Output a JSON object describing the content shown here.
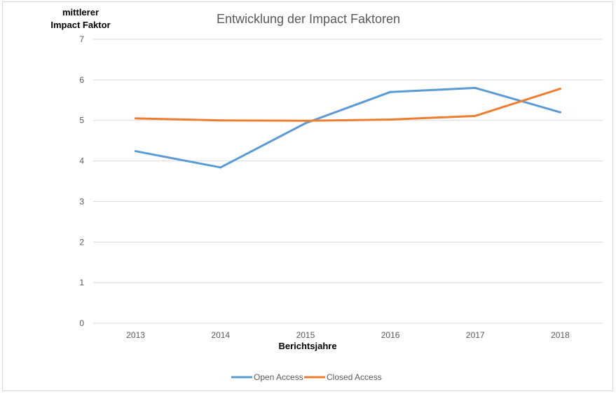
{
  "chart_data": {
    "type": "line",
    "title": "Entwicklung der Impact Faktoren",
    "ylabel_line1": "mittlerer",
    "ylabel_line2": "Impact Faktor",
    "xlabel": "Berichtsjahre",
    "categories": [
      "2013",
      "2014",
      "2015",
      "2016",
      "2017",
      "2018"
    ],
    "yticks": [
      "0",
      "1",
      "2",
      "3",
      "4",
      "5",
      "6",
      "7"
    ],
    "ylim": [
      0,
      7
    ],
    "grid": true,
    "legend_position": "bottom",
    "series": [
      {
        "name": "Open Access",
        "color": "#5b9bd5",
        "values": [
          4.24,
          3.84,
          4.93,
          5.7,
          5.8,
          5.2
        ]
      },
      {
        "name": "Closed Access",
        "color": "#ed7d31",
        "values": [
          5.05,
          5.0,
          4.99,
          5.02,
          5.11,
          5.78
        ]
      }
    ]
  }
}
